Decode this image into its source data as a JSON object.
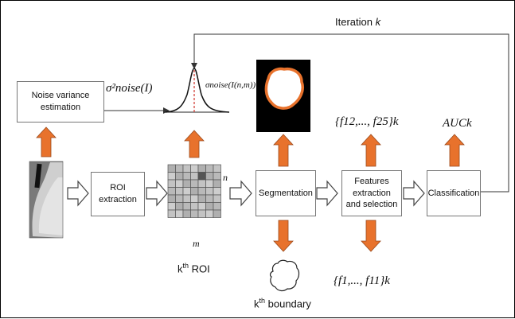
{
  "boxes": {
    "noise_variance": "Noise variance\nestimation",
    "roi_extraction": "ROI\nextraction",
    "segmentation": "Segmentation",
    "features": "Features\nextraction\nand selection",
    "classification": "Classification"
  },
  "labels": {
    "iteration_prefix": "Iteration ",
    "iteration_var": "k",
    "sigma2_label": "σ²noise(I)",
    "sigma_nm_label": "σnoise(I(n,m))",
    "f12_f25_label": "{f12,..., f25}k",
    "auc_label": "AUCk",
    "f1_f11_label": "{f1,..., f11}k",
    "roi_caption_prefix": "k",
    "roi_caption_sup": "th",
    "roi_caption_suffix": " ROI",
    "boundary_caption_prefix": "k",
    "boundary_caption_sup": "th",
    "boundary_caption_suffix": " boundary",
    "grid_n": "n",
    "grid_m": "m"
  },
  "colors": {
    "arrow_fill": "#e8722c",
    "arrow_stroke": "#9a4a1c",
    "gauss_mean": "#d0342c",
    "lesion_edge": "#e8722c"
  }
}
